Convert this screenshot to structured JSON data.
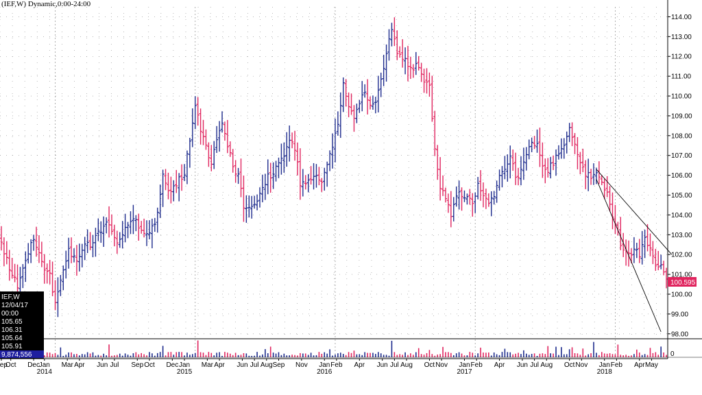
{
  "chart_title": "(IEF,W) Dynamic,0:00-24:00",
  "colors": {
    "up": "#1c2a8c",
    "down": "#e0245e",
    "price_label_bg": "#e0245e",
    "info_box_bg": "#000000",
    "info_box_last_bg": "#1f1f9f",
    "grid": "#8a8a8a"
  },
  "info_box": {
    "lines": [
      "IEF,W",
      "12/04/17",
      "00:00",
      "105.65",
      "106.31",
      "105.64",
      "105.91"
    ],
    "volume": "9,874,556"
  },
  "chart_data": {
    "type": "ohlc",
    "title": "(IEF,W) Dynamic,0:00-24:00",
    "ylim": [
      97.75,
      114.5
    ],
    "y_ticks": [
      "114.00",
      "113.00",
      "112.00",
      "111.00",
      "110.00",
      "109.00",
      "108.00",
      "107.00",
      "106.00",
      "105.00",
      "104.00",
      "103.00",
      "102.00",
      "101.00",
      "100.00",
      "99.00",
      "98.00"
    ],
    "last_price_label": "100.595",
    "volume_zero_label": "0",
    "grid": true,
    "x_month_labels": [
      {
        "label": "Sep",
        "i": 0.5
      },
      {
        "label": "Oct",
        "i": 4
      },
      {
        "label": "Dec",
        "i": 12.5
      },
      {
        "label": "Jan",
        "i": 16.5
      },
      {
        "label": "Mar",
        "i": 25
      },
      {
        "label": "Apr",
        "i": 29.5
      },
      {
        "label": "Jun",
        "i": 38
      },
      {
        "label": "Jul",
        "i": 42.5
      },
      {
        "label": "Sep",
        "i": 51
      },
      {
        "label": "Oct",
        "i": 55.5
      },
      {
        "label": "Dec",
        "i": 64
      },
      {
        "label": "Jan",
        "i": 68.5
      },
      {
        "label": "Mar",
        "i": 77
      },
      {
        "label": "Apr",
        "i": 81.5
      },
      {
        "label": "Jun",
        "i": 90
      },
      {
        "label": "Jul",
        "i": 94.5
      },
      {
        "label": "Aug",
        "i": 99
      },
      {
        "label": "Sep",
        "i": 103.5
      },
      {
        "label": "Nov",
        "i": 112
      },
      {
        "label": "Jan",
        "i": 120.5
      },
      {
        "label": "Feb",
        "i": 125
      },
      {
        "label": "Apr",
        "i": 133.5
      },
      {
        "label": "Jun",
        "i": 142
      },
      {
        "label": "Jul",
        "i": 146.5
      },
      {
        "label": "Aug",
        "i": 151
      },
      {
        "label": "Oct",
        "i": 159.5
      },
      {
        "label": "Nov",
        "i": 164
      },
      {
        "label": "Jan",
        "i": 172.5
      },
      {
        "label": "Feb",
        "i": 177
      },
      {
        "label": "Apr",
        "i": 185.5
      },
      {
        "label": "Jun",
        "i": 194
      },
      {
        "label": "Jul",
        "i": 198.5
      },
      {
        "label": "Aug",
        "i": 203
      },
      {
        "label": "Oct",
        "i": 211.5
      },
      {
        "label": "Nov",
        "i": 216
      },
      {
        "label": "Jan",
        "i": 224.5
      },
      {
        "label": "Feb",
        "i": 229
      },
      {
        "label": "Apr",
        "i": 237.5
      },
      {
        "label": "May",
        "i": 242
      }
    ],
    "x_year_labels": [
      {
        "label": "2014",
        "i": 16.5
      },
      {
        "label": "2015",
        "i": 68.5
      },
      {
        "label": "2016",
        "i": 120.5
      },
      {
        "label": "2017",
        "i": 172.5
      },
      {
        "label": "2018",
        "i": 224.5
      }
    ],
    "x_year_boundaries": [
      20.5,
      72.5,
      124.5,
      176.5,
      228.5
    ],
    "anchors": [
      [
        0,
        102.6
      ],
      [
        3,
        101.3
      ],
      [
        6,
        100.4
      ],
      [
        9,
        101.6
      ],
      [
        12,
        102.9
      ],
      [
        15,
        101.5
      ],
      [
        18,
        100.9
      ],
      [
        20,
        99.6
      ],
      [
        22,
        100.8
      ],
      [
        25,
        102.3
      ],
      [
        28,
        101.5
      ],
      [
        31,
        102.4
      ],
      [
        34,
        102.6
      ],
      [
        37,
        103.3
      ],
      [
        40,
        103.6
      ],
      [
        43,
        102.7
      ],
      [
        46,
        103.4
      ],
      [
        49,
        103.9
      ],
      [
        52,
        103.2
      ],
      [
        55,
        103.1
      ],
      [
        58,
        104.0
      ],
      [
        60,
        106.2
      ],
      [
        62,
        105.1
      ],
      [
        65,
        105.6
      ],
      [
        68,
        106.1
      ],
      [
        70,
        107.9
      ],
      [
        72,
        109.5
      ],
      [
        75,
        107.8
      ],
      [
        78,
        106.5
      ],
      [
        80,
        107.9
      ],
      [
        82,
        108.5
      ],
      [
        84,
        107.6
      ],
      [
        86,
        106.5
      ],
      [
        88,
        105.9
      ],
      [
        90,
        104.5
      ],
      [
        93,
        104.3
      ],
      [
        96,
        105.1
      ],
      [
        99,
        105.9
      ],
      [
        102,
        106.3
      ],
      [
        105,
        107.1
      ],
      [
        107,
        107.9
      ],
      [
        109,
        107.4
      ],
      [
        111,
        105.6
      ],
      [
        114,
        105.7
      ],
      [
        117,
        106.1
      ],
      [
        119,
        105.5
      ],
      [
        121,
        106.6
      ],
      [
        123,
        107.5
      ],
      [
        125,
        108.5
      ],
      [
        127,
        110.5
      ],
      [
        129,
        109.4
      ],
      [
        131,
        108.8
      ],
      [
        133,
        109.6
      ],
      [
        135,
        110.3
      ],
      [
        137,
        109.6
      ],
      [
        139,
        109.8
      ],
      [
        141,
        110.8
      ],
      [
        143,
        112.3
      ],
      [
        145,
        113.5
      ],
      [
        147,
        112.2
      ],
      [
        149,
        111.9
      ],
      [
        151,
        111.6
      ],
      [
        153,
        111.4
      ],
      [
        155,
        111.6
      ],
      [
        157,
        110.7
      ],
      [
        159,
        110.4
      ],
      [
        161,
        107.2
      ],
      [
        163,
        105.4
      ],
      [
        165,
        104.9
      ],
      [
        167,
        103.9
      ],
      [
        169,
        104.9
      ],
      [
        171,
        105.1
      ],
      [
        173,
        104.8
      ],
      [
        175,
        104.6
      ],
      [
        177,
        105.6
      ],
      [
        179,
        104.9
      ],
      [
        181,
        104.6
      ],
      [
        183,
        105.0
      ],
      [
        185,
        105.9
      ],
      [
        187,
        106.4
      ],
      [
        189,
        107.0
      ],
      [
        191,
        105.9
      ],
      [
        193,
        106.2
      ],
      [
        195,
        107.2
      ],
      [
        197,
        107.5
      ],
      [
        199,
        107.6
      ],
      [
        201,
        106.3
      ],
      [
        203,
        106.3
      ],
      [
        205,
        106.6
      ],
      [
        207,
        107.1
      ],
      [
        209,
        107.4
      ],
      [
        211,
        108.4
      ],
      [
        213,
        107.4
      ],
      [
        215,
        106.6
      ],
      [
        217,
        106.1
      ],
      [
        219,
        106.0
      ],
      [
        221,
        106.3
      ],
      [
        223,
        105.6
      ],
      [
        225,
        105.1
      ],
      [
        227,
        103.9
      ],
      [
        229,
        103.0
      ],
      [
        231,
        102.2
      ],
      [
        233,
        101.9
      ],
      [
        235,
        102.4
      ],
      [
        237,
        101.9
      ],
      [
        239,
        102.8
      ],
      [
        241,
        102.3
      ],
      [
        243,
        101.4
      ],
      [
        245,
        101.6
      ],
      [
        247,
        100.6
      ]
    ],
    "ranges": [
      [
        104.6,
        105.9
      ],
      [
        109.5,
        111.9
      ],
      [
        109.6,
        113.5
      ],
      [
        111.9,
        114.0
      ],
      [
        108.5,
        110.8
      ],
      [
        99.1,
        100.4
      ],
      [
        104.5,
        106.9
      ],
      [
        107.0,
        109.3
      ],
      [
        103.6,
        105.2
      ],
      [
        97.9,
        101.5
      ]
    ],
    "volume_spikes": [
      40,
      60,
      73,
      100,
      145,
      203,
      220,
      229
    ]
  },
  "trend_lines": [
    {
      "from": [
        221,
        106.3
      ],
      "to": [
        249,
        102.0
      ]
    },
    {
      "from": [
        221,
        105.8
      ],
      "to": [
        245,
        98.1
      ]
    }
  ]
}
